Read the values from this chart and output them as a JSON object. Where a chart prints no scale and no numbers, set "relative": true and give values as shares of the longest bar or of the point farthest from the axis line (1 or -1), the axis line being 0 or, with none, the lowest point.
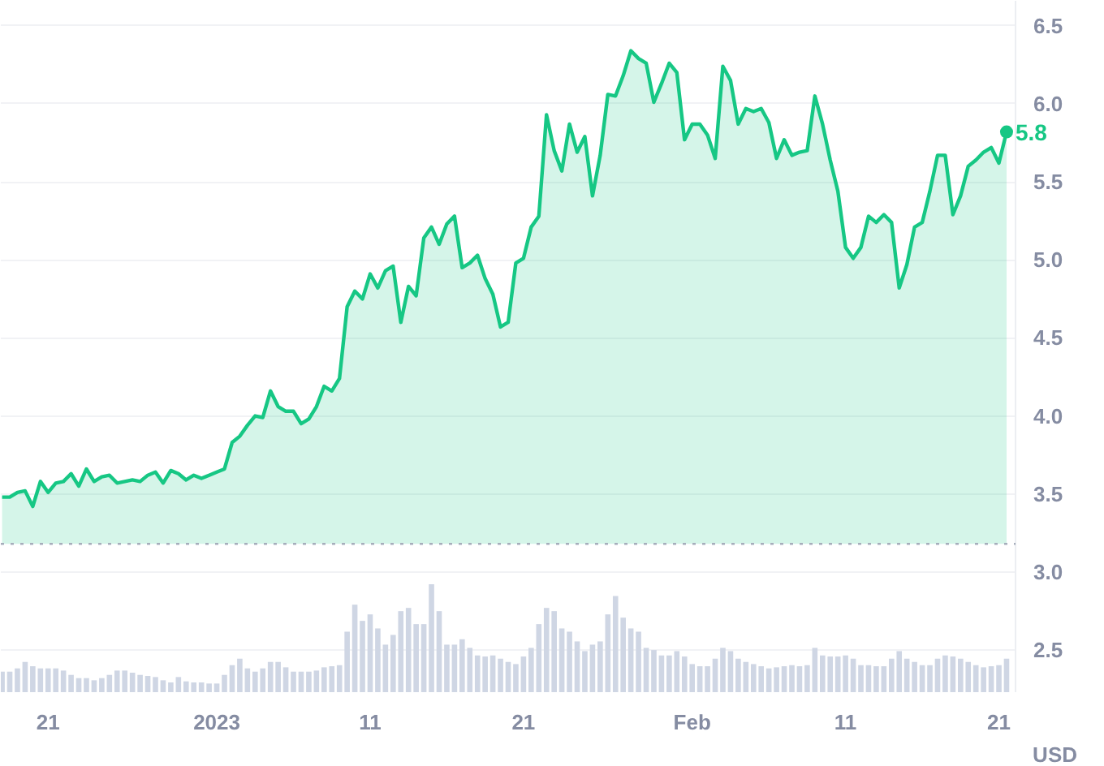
{
  "chart_data": [
    {
      "type": "area",
      "ylabel": "USD",
      "grid": "y",
      "line_style": "solid",
      "x": [
        "2022-12-18T00:00",
        "2022-12-18T12:00",
        "2022-12-19T00:00",
        "2022-12-19T12:00",
        "2022-12-20T00:00",
        "2022-12-20T12:00",
        "2022-12-21T00:00",
        "2022-12-21T12:00",
        "2022-12-22T00:00",
        "2022-12-22T12:00",
        "2022-12-23T00:00",
        "2022-12-23T12:00",
        "2022-12-24T00:00",
        "2022-12-24T12:00",
        "2022-12-25T00:00",
        "2022-12-25T12:00",
        "2022-12-26T00:00",
        "2022-12-26T12:00",
        "2022-12-27T00:00",
        "2022-12-27T12:00",
        "2022-12-28T00:00",
        "2022-12-28T12:00",
        "2022-12-29T00:00",
        "2022-12-29T12:00",
        "2022-12-30T00:00",
        "2022-12-30T12:00",
        "2022-12-31T00:00",
        "2022-12-31T12:00",
        "2023-01-01T00:00",
        "2023-01-01T12:00",
        "2023-01-02T00:00",
        "2023-01-02T12:00",
        "2023-01-03T00:00",
        "2023-01-03T12:00",
        "2023-01-04T00:00",
        "2023-01-04T12:00",
        "2023-01-05T00:00",
        "2023-01-05T12:00",
        "2023-01-06T00:00",
        "2023-01-06T12:00",
        "2023-01-07T00:00",
        "2023-01-07T12:00",
        "2023-01-08T00:00",
        "2023-01-08T12:00",
        "2023-01-09T00:00",
        "2023-01-09T12:00",
        "2023-01-10T00:00",
        "2023-01-10T12:00",
        "2023-01-11T00:00",
        "2023-01-11T12:00",
        "2023-01-12T00:00",
        "2023-01-12T12:00",
        "2023-01-13T00:00",
        "2023-01-13T12:00",
        "2023-01-14T00:00",
        "2023-01-14T12:00",
        "2023-01-15T00:00",
        "2023-01-15T12:00",
        "2023-01-16T00:00",
        "2023-01-16T12:00",
        "2023-01-17T00:00",
        "2023-01-17T12:00",
        "2023-01-18T00:00",
        "2023-01-18T12:00",
        "2023-01-19T00:00",
        "2023-01-19T12:00",
        "2023-01-20T00:00",
        "2023-01-20T12:00",
        "2023-01-21T00:00",
        "2023-01-21T12:00",
        "2023-01-22T00:00",
        "2023-01-22T12:00",
        "2023-01-23T00:00",
        "2023-01-23T12:00",
        "2023-01-24T00:00",
        "2023-01-24T12:00",
        "2023-01-25T00:00",
        "2023-01-25T12:00",
        "2023-01-26T00:00",
        "2023-01-26T12:00",
        "2023-01-27T00:00",
        "2023-01-27T12:00",
        "2023-01-28T00:00",
        "2023-01-28T12:00",
        "2023-01-29T00:00",
        "2023-01-29T12:00",
        "2023-01-30T00:00",
        "2023-01-30T12:00",
        "2023-01-31T00:00",
        "2023-01-31T12:00",
        "2023-02-01T00:00",
        "2023-02-01T12:00",
        "2023-02-02T00:00",
        "2023-02-02T12:00",
        "2023-02-03T00:00",
        "2023-02-03T12:00",
        "2023-02-04T00:00",
        "2023-02-04T12:00",
        "2023-02-05T00:00",
        "2023-02-05T12:00",
        "2023-02-06T00:00",
        "2023-02-06T12:00",
        "2023-02-07T00:00",
        "2023-02-07T12:00",
        "2023-02-08T00:00",
        "2023-02-08T12:00",
        "2023-02-09T00:00",
        "2023-02-09T12:00",
        "2023-02-10T00:00",
        "2023-02-10T12:00",
        "2023-02-11T00:00",
        "2023-02-11T12:00",
        "2023-02-12T00:00",
        "2023-02-12T12:00",
        "2023-02-13T00:00",
        "2023-02-13T12:00",
        "2023-02-14T00:00",
        "2023-02-14T12:00",
        "2023-02-15T00:00",
        "2023-02-15T12:00",
        "2023-02-16T00:00",
        "2023-02-16T12:00",
        "2023-02-17T00:00",
        "2023-02-17T12:00",
        "2023-02-18T00:00",
        "2023-02-18T12:00",
        "2023-02-19T00:00",
        "2023-02-19T12:00",
        "2023-02-20T00:00",
        "2023-02-20T12:00",
        "2023-02-21T00:00",
        "2023-02-21T12:00"
      ],
      "series": [
        {
          "color": "#16c784",
          "values": [
            3.48,
            3.48,
            3.51,
            3.52,
            3.42,
            3.58,
            3.51,
            3.57,
            3.58,
            3.63,
            3.55,
            3.66,
            3.58,
            3.61,
            3.62,
            3.57,
            3.58,
            3.59,
            3.58,
            3.62,
            3.64,
            3.57,
            3.65,
            3.63,
            3.59,
            3.62,
            3.6,
            3.62,
            3.64,
            3.66,
            3.83,
            3.87,
            3.94,
            4.0,
            3.99,
            4.16,
            4.06,
            4.03,
            4.03,
            3.95,
            3.98,
            4.06,
            4.19,
            4.16,
            4.24,
            4.7,
            4.8,
            4.75,
            4.91,
            4.82,
            4.93,
            4.96,
            4.6,
            4.83,
            4.77,
            5.14,
            5.21,
            5.1,
            5.23,
            5.28,
            4.95,
            4.98,
            5.03,
            4.88,
            4.78,
            4.57,
            4.6,
            4.98,
            5.01,
            5.21,
            5.28,
            5.93,
            5.7,
            5.57,
            5.87,
            5.69,
            5.79,
            5.41,
            5.67,
            6.06,
            6.05,
            6.18,
            6.34,
            6.29,
            6.26,
            6.01,
            6.13,
            6.26,
            6.2,
            5.77,
            5.87,
            5.87,
            5.8,
            5.65,
            6.24,
            6.15,
            5.87,
            5.97,
            5.95,
            5.97,
            5.88,
            5.65,
            5.77,
            5.67,
            5.69,
            5.7,
            6.05,
            5.87,
            5.64,
            5.44,
            5.08,
            5.01,
            5.08,
            5.28,
            5.24,
            5.29,
            5.24,
            4.82,
            4.97,
            5.21,
            5.24,
            5.44,
            5.67,
            5.67,
            5.29,
            5.41,
            5.6,
            5.64,
            5.69,
            5.72,
            5.62,
            5.82
          ]
        }
      ],
      "xlim": [
        "2022-12-17T22:00",
        "2023-02-22T02:00"
      ],
      "xticks": [
        {
          "value": "2022-12-21",
          "label": "21"
        },
        {
          "value": "2023-01-01",
          "label": "2023"
        },
        {
          "value": "2023-01-11",
          "label": "11"
        },
        {
          "value": "2023-01-21",
          "label": "21"
        },
        {
          "value": "2023-02-01",
          "label": "Feb"
        },
        {
          "value": "2023-02-11",
          "label": "11"
        },
        {
          "value": "2023-02-21",
          "label": "21"
        }
      ],
      "ylim": [
        2.23,
        6.66
      ],
      "yticks": [
        2.5,
        {
          "value": 3,
          "label": "3.0"
        },
        3.5,
        {
          "value": 4,
          "label": "4.0"
        },
        4.5,
        {
          "value": 5,
          "label": "5.0"
        },
        5.5,
        {
          "value": 6,
          "label": "6.0"
        },
        6.5
      ],
      "ref_lines": [
        {
          "axis": "y",
          "value": 3.18,
          "color": "#a6adbb",
          "line_style": "dotted"
        }
      ],
      "annotations": [
        {
          "text": "5.8",
          "x": "2023-02-21T12:00",
          "y": 5.82
        }
      ]
    },
    {
      "type": "bar",
      "relative": true,
      "tick_labels": false,
      "color": "#cfd6e4",
      "values": [
        0.19,
        0.19,
        0.22,
        0.28,
        0.24,
        0.22,
        0.22,
        0.22,
        0.2,
        0.16,
        0.13,
        0.13,
        0.11,
        0.13,
        0.16,
        0.2,
        0.2,
        0.18,
        0.16,
        0.15,
        0.14,
        0.11,
        0.09,
        0.14,
        0.1,
        0.09,
        0.09,
        0.08,
        0.08,
        0.16,
        0.25,
        0.31,
        0.22,
        0.19,
        0.22,
        0.28,
        0.28,
        0.23,
        0.19,
        0.19,
        0.19,
        0.2,
        0.23,
        0.24,
        0.25,
        0.56,
        0.81,
        0.66,
        0.72,
        0.59,
        0.44,
        0.53,
        0.75,
        0.78,
        0.63,
        0.63,
        1.0,
        0.75,
        0.44,
        0.44,
        0.49,
        0.41,
        0.34,
        0.33,
        0.34,
        0.31,
        0.28,
        0.26,
        0.33,
        0.41,
        0.63,
        0.78,
        0.75,
        0.59,
        0.56,
        0.47,
        0.38,
        0.44,
        0.47,
        0.72,
        0.89,
        0.69,
        0.59,
        0.56,
        0.41,
        0.39,
        0.34,
        0.34,
        0.38,
        0.33,
        0.26,
        0.24,
        0.24,
        0.31,
        0.41,
        0.38,
        0.31,
        0.28,
        0.26,
        0.24,
        0.22,
        0.23,
        0.24,
        0.25,
        0.24,
        0.25,
        0.41,
        0.34,
        0.33,
        0.33,
        0.34,
        0.31,
        0.25,
        0.25,
        0.24,
        0.24,
        0.31,
        0.38,
        0.31,
        0.28,
        0.25,
        0.25,
        0.31,
        0.34,
        0.33,
        0.31,
        0.28,
        0.25,
        0.23,
        0.24,
        0.25,
        0.31
      ]
    }
  ]
}
